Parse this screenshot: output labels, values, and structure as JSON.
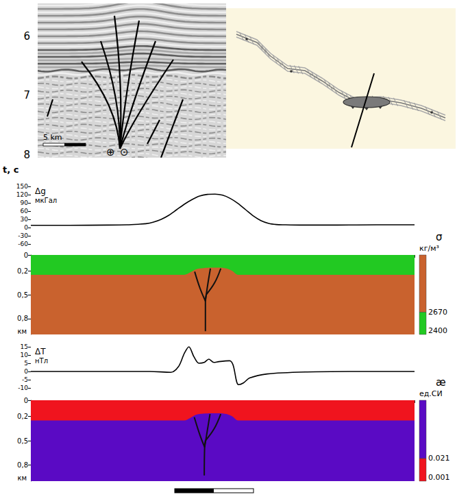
{
  "seismic_section": {
    "ylim": [
      5.45,
      8.05
    ],
    "yticks": [
      6,
      7,
      8
    ],
    "ylabel": "t, c",
    "scale_label": "5 km",
    "symbols": [
      "⊕",
      "⊙"
    ]
  },
  "chart_data": [
    {
      "type": "line",
      "ylabel": "Δg",
      "yunit": "мкГал",
      "xlim": [
        0,
        100
      ],
      "ylim": [
        -60,
        150
      ],
      "yticks": [
        150,
        120,
        90,
        60,
        30,
        0,
        -30,
        -60
      ],
      "tick_labels": "y",
      "grid": false,
      "color": "#000000",
      "x": [
        0,
        10,
        20,
        25,
        28,
        30,
        32,
        34,
        36,
        38,
        40,
        42,
        44,
        46,
        48,
        50,
        52,
        54,
        56,
        58,
        60,
        62,
        64,
        66,
        70,
        80,
        90,
        100
      ],
      "values": [
        8,
        8,
        9,
        10,
        12,
        14,
        20,
        30,
        45,
        65,
        85,
        102,
        115,
        121,
        122,
        118,
        106,
        88,
        65,
        42,
        25,
        15,
        11,
        10,
        9,
        9,
        10,
        10
      ]
    },
    {
      "type": "section",
      "ylabel": "км",
      "xlim": [
        0,
        100
      ],
      "xticks": [
        0,
        4,
        8,
        12,
        16,
        20,
        24,
        28,
        32,
        36,
        40,
        44,
        48,
        52,
        56,
        60,
        64,
        68,
        72,
        76,
        80,
        84,
        88,
        92,
        96,
        100
      ],
      "ylim": [
        0,
        1
      ],
      "yticks": [
        0,
        {
          "value": 0.2,
          "label": "0,2"
        },
        {
          "value": 0.5,
          "label": "0,5"
        },
        {
          "value": 0.8,
          "label": "0,8"
        }
      ],
      "tick_labels": "y",
      "x": [
        0,
        40,
        41.5,
        43,
        45,
        47,
        49,
        51,
        52.5,
        54,
        100
      ],
      "interface": [
        0.25,
        0.25,
        0.22,
        0.18,
        0.165,
        0.16,
        0.16,
        0.17,
        0.2,
        0.25,
        0.25
      ],
      "layers": [
        {
          "value": 2400,
          "color": "#22c922"
        },
        {
          "value": 2670,
          "color": "#c9622e"
        }
      ],
      "colorbar": {
        "title": "σ",
        "unit": "кг/м³",
        "ticks": [
          2400,
          2670
        ]
      },
      "faults": [
        {
          "x": [
            45.5,
            45.5,
            45.7
          ],
          "depth": [
            0.96,
            0.58,
            0.5
          ]
        },
        {
          "x": [
            45.5,
            44.1,
            42.7
          ],
          "depth": [
            0.58,
            0.42,
            0.21
          ]
        },
        {
          "x": [
            45.5,
            46.1,
            46.8
          ],
          "depth": [
            0.58,
            0.375,
            0.17
          ]
        },
        {
          "x": [
            45.7,
            47.9,
            49.5
          ],
          "depth": [
            0.5,
            0.35,
            0.17
          ]
        }
      ]
    },
    {
      "type": "line",
      "ylabel": "ΔT",
      "yunit": "нТл",
      "xlim": [
        0,
        100
      ],
      "ylim": [
        -10,
        15
      ],
      "yticks": [
        15,
        10,
        5,
        0,
        -5,
        -10
      ],
      "tick_labels": "y",
      "grid": false,
      "color": "#000000",
      "x": [
        0,
        20,
        31,
        36.5,
        38.5,
        40,
        41.2,
        42.5,
        43.8,
        45.2,
        46.4,
        47.7,
        49,
        51.8,
        52.7,
        54.1,
        55.4,
        57,
        61.6,
        72,
        85,
        100
      ],
      "values": [
        0,
        0,
        0,
        -0.5,
        3,
        11,
        15,
        9,
        5,
        5.5,
        7.5,
        5.5,
        6,
        6.5,
        4,
        -8,
        -7,
        -4,
        -1.5,
        -0.3,
        0,
        0
      ]
    },
    {
      "type": "section",
      "ylabel": "км",
      "xlim": [
        0,
        100
      ],
      "xticks": [
        0,
        4,
        8,
        12,
        16,
        20,
        24,
        28,
        32,
        36,
        40,
        44,
        48,
        52,
        56,
        60,
        64,
        68,
        72,
        76,
        80,
        84,
        88,
        92,
        96,
        100
      ],
      "ylim": [
        0,
        1
      ],
      "yticks": [
        0,
        {
          "value": 0.2,
          "label": "0,2"
        },
        {
          "value": 0.5,
          "label": "0,5"
        },
        {
          "value": 0.8,
          "label": "0,8"
        }
      ],
      "tick_labels": "y",
      "x": [
        0,
        40,
        41.5,
        43,
        45,
        47,
        49,
        51,
        52.5,
        54,
        100
      ],
      "interface": [
        0.25,
        0.25,
        0.22,
        0.18,
        0.165,
        0.16,
        0.16,
        0.17,
        0.2,
        0.25,
        0.25
      ],
      "layers": [
        {
          "value": 0.001,
          "color": "#f0141e"
        },
        {
          "value": 0.021,
          "color": "#5a0ac4"
        }
      ],
      "colorbar": {
        "title": "æ",
        "unit": "ед.СИ",
        "ticks": [
          0.001,
          0.021
        ]
      },
      "faults": [
        {
          "x": [
            45.2,
            45.3,
            45.5
          ],
          "depth": [
            0.93,
            0.58,
            0.5
          ]
        },
        {
          "x": [
            45.3,
            44.0,
            42.6
          ],
          "depth": [
            0.58,
            0.42,
            0.21
          ]
        },
        {
          "x": [
            45.3,
            46.0,
            46.7
          ],
          "depth": [
            0.58,
            0.375,
            0.17
          ]
        },
        {
          "x": [
            45.5,
            47.8,
            49.5
          ],
          "depth": [
            0.5,
            0.35,
            0.17
          ]
        }
      ]
    }
  ]
}
